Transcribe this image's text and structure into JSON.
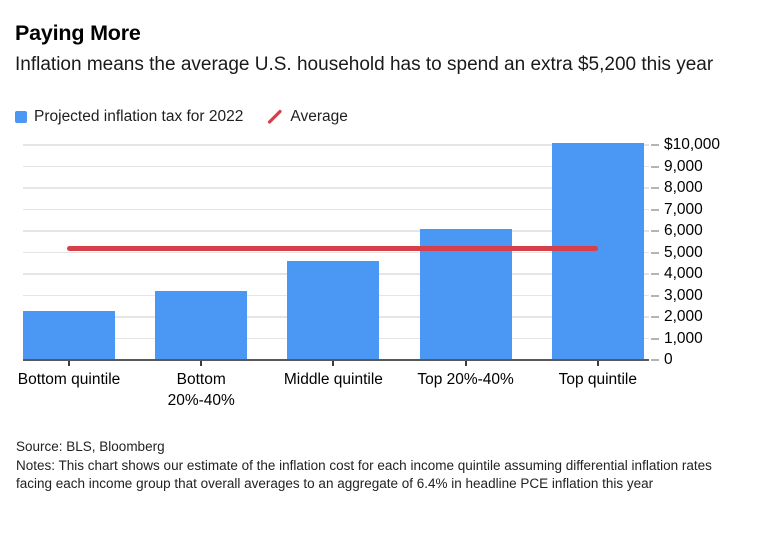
{
  "header": {
    "title": "Paying More",
    "subtitle": "Inflation means the average U.S. household has to spend an extra $5,200 this year"
  },
  "legend": {
    "series_label": "Projected inflation tax for 2022",
    "average_label": "Average"
  },
  "chart_data": {
    "type": "bar",
    "categories": [
      "Bottom quintile",
      "Bottom 20%-40%",
      "Middle quintile",
      "Top 20%-40%",
      "Top quintile"
    ],
    "values": [
      2300,
      3200,
      4600,
      6100,
      10100
    ],
    "average_line_value": 5200,
    "title": "Paying More",
    "xlabel": "",
    "ylabel": "",
    "ylim": [
      0,
      10000
    ],
    "yticks": [
      0,
      1000,
      2000,
      3000,
      4000,
      5000,
      6000,
      7000,
      8000,
      9000,
      10000
    ],
    "ytick_labels": [
      "0",
      "1,000",
      "2,000",
      "3,000",
      "4,000",
      "5,000",
      "6,000",
      "7,000",
      "8,000",
      "9,000",
      "$10,000"
    ],
    "grid": true,
    "legend_entries": [
      "Projected inflation tax for 2022",
      "Average"
    ],
    "legend_position": "top-left",
    "bar_color": "#4a98f3",
    "average_color": "#d6404a"
  },
  "footer": {
    "source": "Source: BLS, Bloomberg",
    "notes": "Notes: This chart shows our estimate of the inflation cost for each income quintile assuming differential inflation rates facing each income group that overall averages to an aggregate of 6.4% in headline PCE inflation this year"
  }
}
